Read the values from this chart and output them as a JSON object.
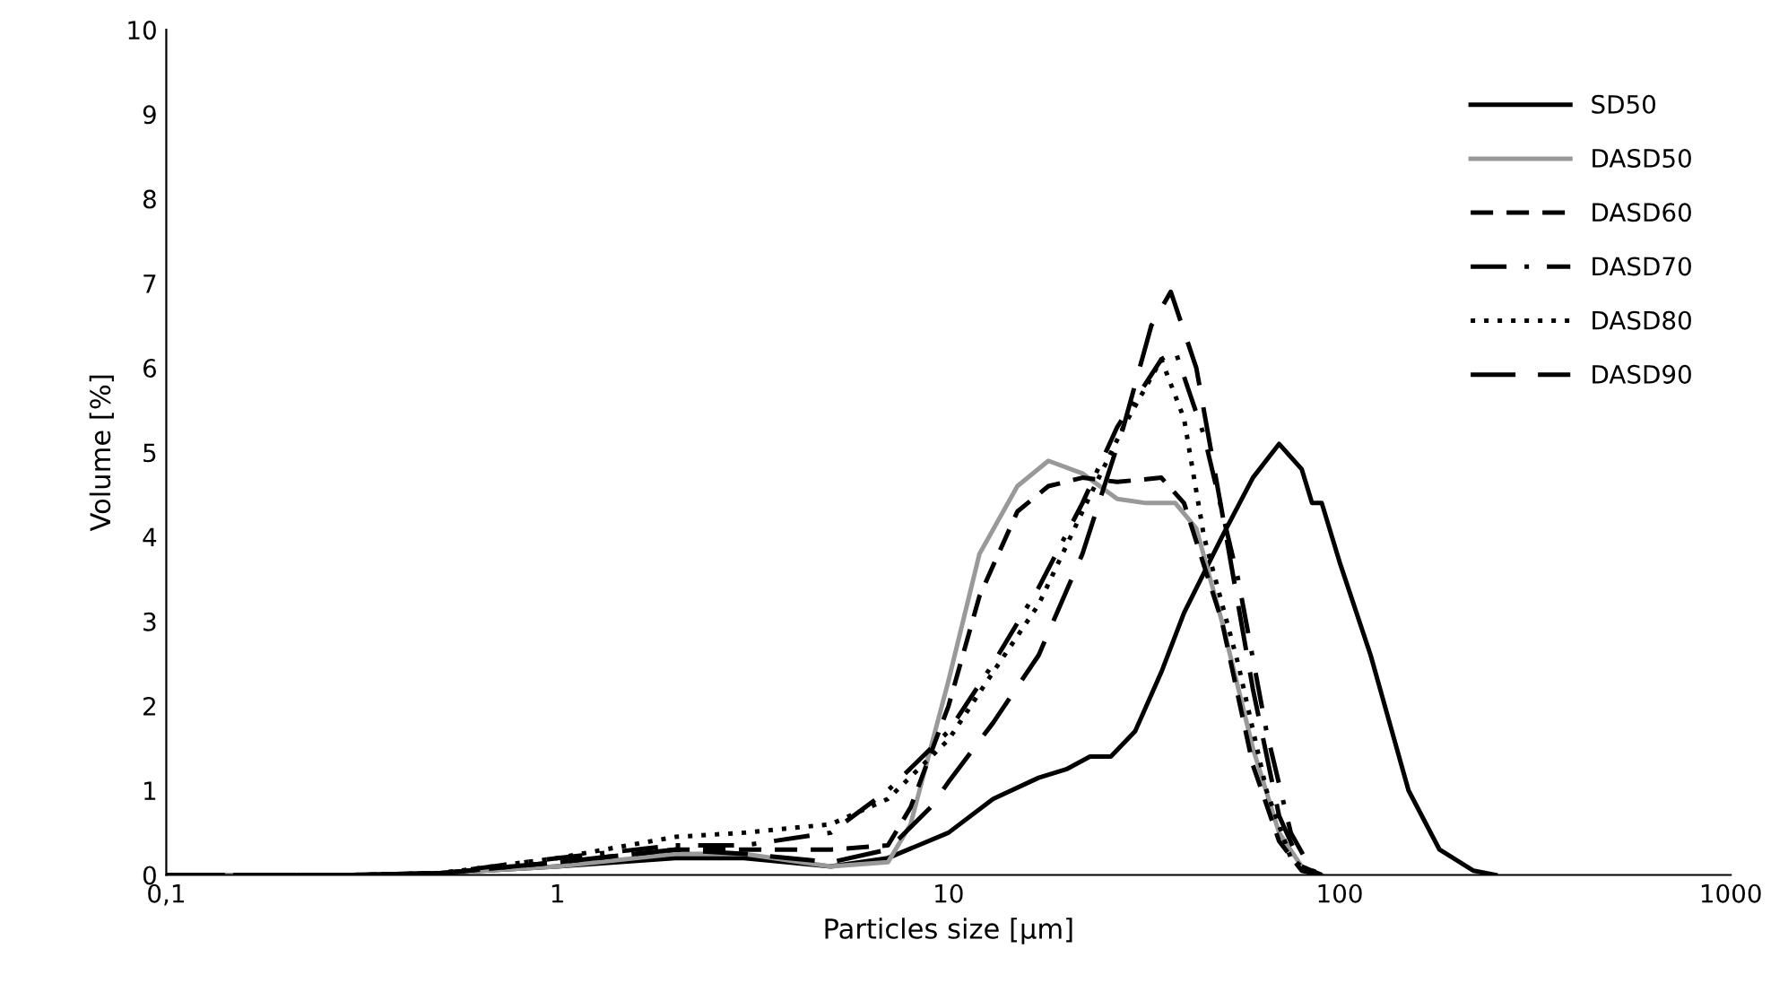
{
  "chart_data": {
    "type": "line",
    "xlabel": "Particles size [µm]",
    "ylabel": "Volume [%]",
    "log": "x",
    "xlim": [
      0.1,
      1000
    ],
    "ylim": [
      0,
      10
    ],
    "xticks": [
      {
        "value": 0.1,
        "label": "0,1"
      },
      1,
      10,
      100,
      1000
    ],
    "yticks": [
      0,
      1,
      2,
      3,
      4,
      5,
      6,
      7,
      8,
      9,
      10
    ],
    "grid": false,
    "legend": "top right",
    "marker": "none",
    "series": [
      {
        "name": "SD50",
        "color": "#000000",
        "line_style": "solid",
        "x": [
          0.1,
          0.3,
          0.5,
          1,
          2,
          3,
          5,
          7,
          10,
          13,
          17,
          20,
          23,
          26,
          30,
          35,
          40,
          50,
          60,
          70,
          80,
          85,
          90,
          100,
          120,
          150,
          180,
          220,
          250
        ],
        "values": [
          0,
          0,
          0.02,
          0.1,
          0.2,
          0.2,
          0.1,
          0.2,
          0.5,
          0.9,
          1.15,
          1.25,
          1.4,
          1.4,
          1.7,
          2.4,
          3.1,
          4.0,
          4.7,
          5.1,
          4.8,
          4.4,
          4.4,
          3.7,
          2.6,
          1.0,
          0.3,
          0.05,
          0
        ]
      },
      {
        "name": "DASD50",
        "color": "#999999",
        "line_style": "solid",
        "x": [
          0.1,
          0.3,
          0.5,
          1,
          2,
          3,
          5,
          7,
          8,
          9,
          10,
          12,
          15,
          18,
          22,
          27,
          32,
          38,
          43,
          50,
          60,
          70,
          80,
          90
        ],
        "values": [
          0,
          0,
          0.02,
          0.1,
          0.25,
          0.25,
          0.1,
          0.15,
          0.6,
          1.5,
          2.3,
          3.8,
          4.6,
          4.9,
          4.75,
          4.45,
          4.4,
          4.4,
          4.1,
          3.0,
          1.5,
          0.5,
          0.1,
          0
        ]
      },
      {
        "name": "DASD60",
        "color": "#000000",
        "line_style": "dashed",
        "x": [
          0.1,
          0.3,
          0.5,
          1,
          2,
          3,
          5,
          7,
          8,
          10,
          12,
          15,
          18,
          22,
          27,
          35,
          40,
          50,
          60,
          70,
          80,
          90
        ],
        "values": [
          0,
          0,
          0.02,
          0.15,
          0.3,
          0.3,
          0.3,
          0.35,
          0.8,
          2.0,
          3.3,
          4.3,
          4.6,
          4.7,
          4.65,
          4.7,
          4.4,
          3.0,
          1.3,
          0.4,
          0.05,
          0
        ]
      },
      {
        "name": "DASD70",
        "color": "#000000",
        "line_style": "dashdot",
        "x": [
          0.1,
          0.3,
          0.5,
          1,
          2,
          3,
          5,
          7,
          10,
          13,
          17,
          22,
          27,
          35,
          38,
          45,
          55,
          65,
          75,
          85,
          95
        ],
        "values": [
          0,
          0,
          0.02,
          0.2,
          0.35,
          0.35,
          0.5,
          1.0,
          1.7,
          2.5,
          3.4,
          4.4,
          5.3,
          6.1,
          6.2,
          5.2,
          3.5,
          1.7,
          0.5,
          0.05,
          0
        ]
      },
      {
        "name": "DASD80",
        "color": "#000000",
        "line_style": "dotted",
        "x": [
          0.1,
          0.3,
          0.5,
          1,
          2,
          3,
          5,
          7,
          10,
          13,
          17,
          22,
          28,
          35,
          40,
          45,
          55,
          65,
          75,
          85
        ],
        "values": [
          0,
          0,
          0.02,
          0.2,
          0.45,
          0.5,
          0.6,
          0.9,
          1.6,
          2.4,
          3.2,
          4.3,
          5.3,
          6.1,
          5.4,
          4.0,
          2.5,
          1.0,
          0.2,
          0
        ]
      },
      {
        "name": "DASD90",
        "color": "#000000",
        "line_style": "longdash",
        "x": [
          0.1,
          0.3,
          0.5,
          1,
          2,
          3,
          5,
          7,
          9,
          10,
          13,
          17,
          22,
          28,
          33,
          37,
          43,
          50,
          60,
          70,
          80,
          90
        ],
        "values": [
          0,
          0,
          0.02,
          0.15,
          0.3,
          0.25,
          0.15,
          0.3,
          0.8,
          1.1,
          1.8,
          2.6,
          3.8,
          5.3,
          6.5,
          6.9,
          6.0,
          4.3,
          2.2,
          0.7,
          0.1,
          0
        ]
      }
    ]
  }
}
